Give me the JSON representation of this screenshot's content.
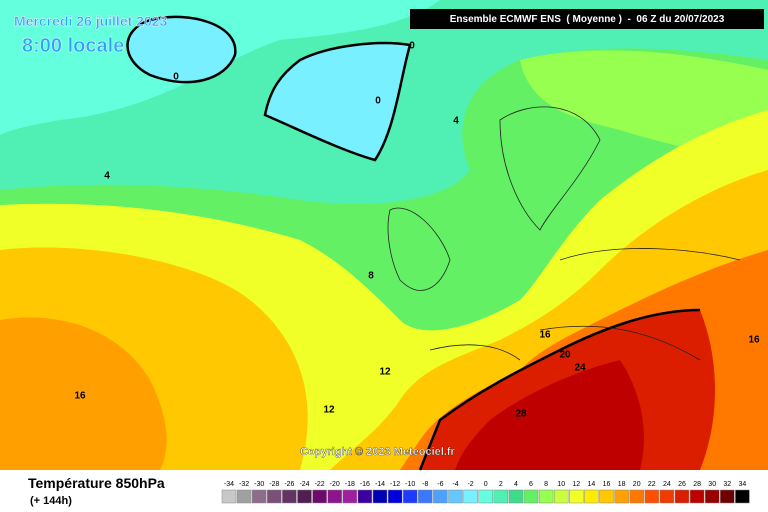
{
  "header": {
    "date": "Mercredi 26 juillet 2023",
    "time": "8:00 locale",
    "model": "Ensemble ECMWF ENS  ( Moyenne )  -  06 Z du 20/07/2023"
  },
  "copyright": "Copyright © 2023 Meteociel.fr",
  "footer": {
    "title": "Température 850hPa",
    "subtitle": "(+ 144h)"
  },
  "contour_labels": [
    0,
    0,
    0,
    4,
    4,
    8,
    12,
    12,
    16,
    16,
    16,
    20,
    24,
    28
  ],
  "scale": [
    {
      "value": -34,
      "color": "#c8c8c8"
    },
    {
      "value": -32,
      "color": "#a0a0a0"
    },
    {
      "value": -30,
      "color": "#8c6e8c"
    },
    {
      "value": -28,
      "color": "#785078"
    },
    {
      "value": -26,
      "color": "#643264"
    },
    {
      "value": -24,
      "color": "#501e50"
    },
    {
      "value": -22,
      "color": "#6e0a6e"
    },
    {
      "value": -20,
      "color": "#8c148c"
    },
    {
      "value": -18,
      "color": "#a01ea0"
    },
    {
      "value": -16,
      "color": "#3c00a0"
    },
    {
      "value": -14,
      "color": "#0000b4"
    },
    {
      "value": -12,
      "color": "#0000dc"
    },
    {
      "value": -10,
      "color": "#1e3cff"
    },
    {
      "value": -8,
      "color": "#3c78ff"
    },
    {
      "value": -6,
      "color": "#50a0ff"
    },
    {
      "value": -4,
      "color": "#64c8ff"
    },
    {
      "value": -2,
      "color": "#78f0ff"
    },
    {
      "value": 0,
      "color": "#64ffdc"
    },
    {
      "value": 2,
      "color": "#50f0b4"
    },
    {
      "value": 4,
      "color": "#3cdc8c"
    },
    {
      "value": 6,
      "color": "#64f064"
    },
    {
      "value": 8,
      "color": "#96ff50"
    },
    {
      "value": 10,
      "color": "#c8ff3c"
    },
    {
      "value": 12,
      "color": "#f0ff28"
    },
    {
      "value": 14,
      "color": "#ffeb00"
    },
    {
      "value": 16,
      "color": "#ffc800"
    },
    {
      "value": 18,
      "color": "#ffa000"
    },
    {
      "value": 20,
      "color": "#ff7800"
    },
    {
      "value": 22,
      "color": "#ff5000"
    },
    {
      "value": 24,
      "color": "#f03c00"
    },
    {
      "value": 26,
      "color": "#dc1e00"
    },
    {
      "value": 28,
      "color": "#be0000"
    },
    {
      "value": 30,
      "color": "#960000"
    },
    {
      "value": 32,
      "color": "#6e0000"
    },
    {
      "value": 34,
      "color": "#000000"
    }
  ]
}
